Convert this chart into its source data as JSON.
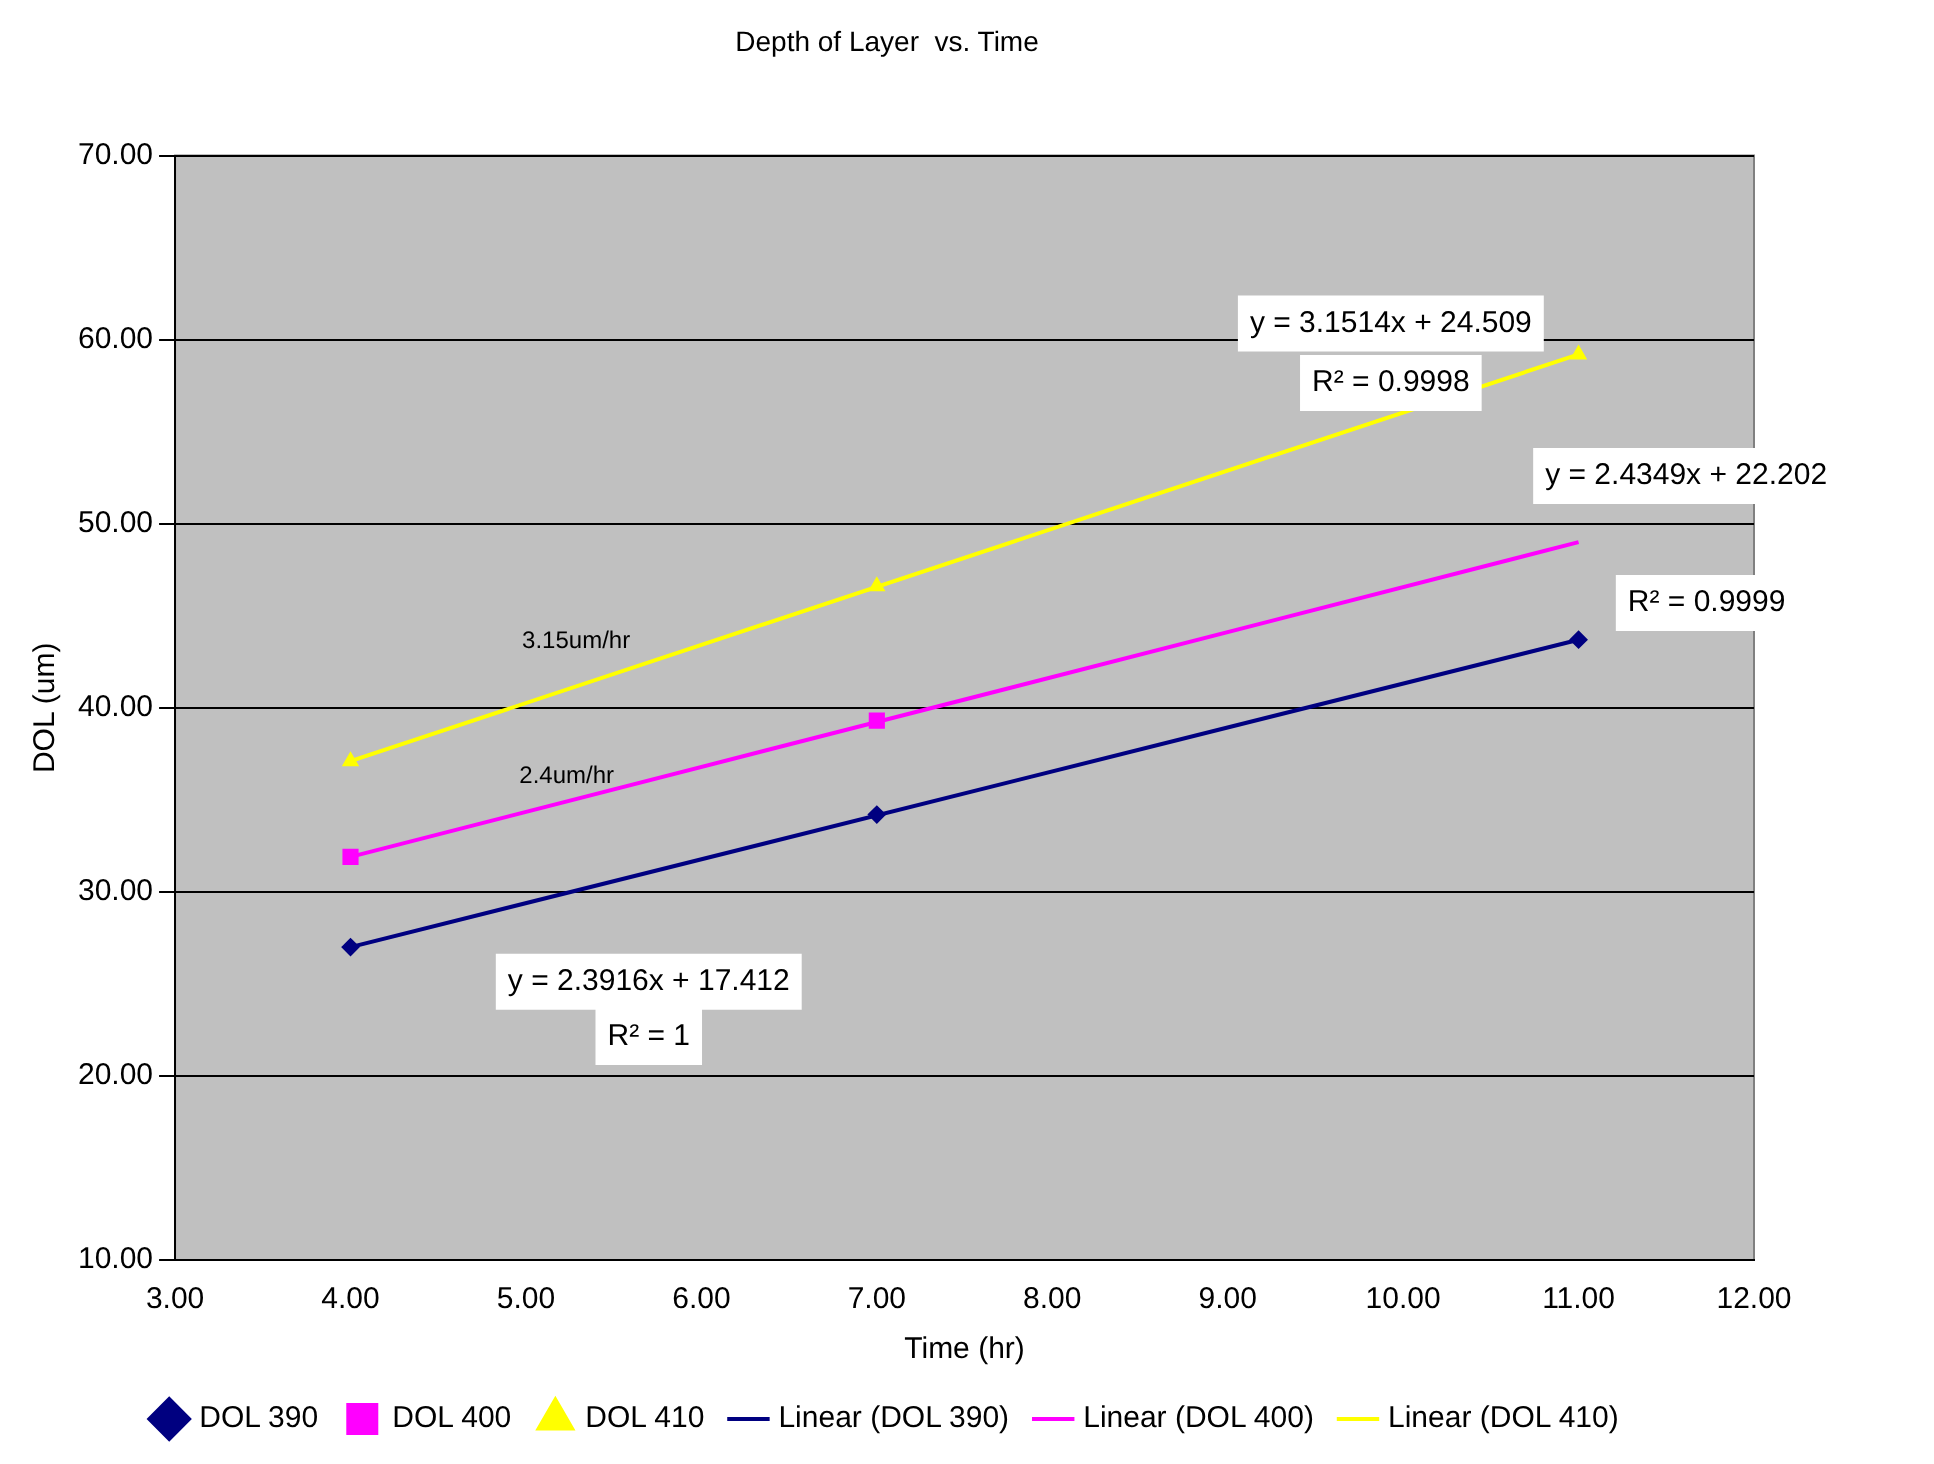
{
  "chart_data": {
    "type": "scatter",
    "title": "Depth of Layer  vs. Time",
    "xlabel": "Time (hr)",
    "ylabel": "DOL (um)",
    "xlim": [
      3,
      12
    ],
    "xticks": [
      {
        "value": 3,
        "label": "3.00"
      },
      {
        "value": 4,
        "label": "4.00"
      },
      {
        "value": 5,
        "label": "5.00"
      },
      {
        "value": 6,
        "label": "6.00"
      },
      {
        "value": 7,
        "label": "7.00"
      },
      {
        "value": 8,
        "label": "8.00"
      },
      {
        "value": 9,
        "label": "9.00"
      },
      {
        "value": 10,
        "label": "10.00"
      },
      {
        "value": 11,
        "label": "11.00"
      },
      {
        "value": 12,
        "label": "12.00"
      }
    ],
    "ylim": [
      10,
      70
    ],
    "yticks": [
      {
        "value": 10,
        "label": "10.00"
      },
      {
        "value": 20,
        "label": "20.00"
      },
      {
        "value": 30,
        "label": "30.00"
      },
      {
        "value": 40,
        "label": "40.00"
      },
      {
        "value": 50,
        "label": "50.00"
      },
      {
        "value": 60,
        "label": "60.00"
      },
      {
        "value": 70,
        "label": "70.00"
      }
    ],
    "grid": "y",
    "legend": "bottom",
    "series": [
      {
        "name": "DOL 390",
        "type": "scatter",
        "marker": "diamond",
        "color": "#000080",
        "x": [
          4,
          7,
          11
        ],
        "values": [
          27.0,
          34.2,
          43.7
        ]
      },
      {
        "name": "DOL 400",
        "type": "scatter",
        "marker": "square",
        "color": "#ff00ff",
        "x": [
          4,
          7
        ],
        "values": [
          31.9,
          39.3
        ]
      },
      {
        "name": "DOL 410",
        "type": "scatter",
        "marker": "triangle",
        "color": "#ffff00",
        "x": [
          4,
          7,
          11
        ],
        "values": [
          37.1,
          46.6,
          59.2
        ]
      },
      {
        "name": "Linear (DOL 390)",
        "type": "line",
        "marker": "none",
        "color": "#000080",
        "x": [
          4,
          11
        ],
        "values": [
          27.0,
          43.7
        ]
      },
      {
        "name": "Linear (DOL 400)",
        "type": "line",
        "marker": "none",
        "color": "#ff00ff",
        "x": [
          4,
          11
        ],
        "values": [
          31.9,
          49.0
        ]
      },
      {
        "name": "Linear (DOL 410)",
        "type": "line",
        "marker": "none",
        "color": "#ffff00",
        "x": [
          4,
          11
        ],
        "values": [
          37.1,
          59.2
        ]
      }
    ],
    "annotations": [
      "y = 3.1514x + 24.509",
      "R² = 0.9998",
      "y = 2.4349x + 22.202",
      "R² = 0.9999",
      "y = 2.3916x + 17.412",
      "R² = 1",
      "3.15um/hr",
      "2.4um/hr"
    ]
  }
}
